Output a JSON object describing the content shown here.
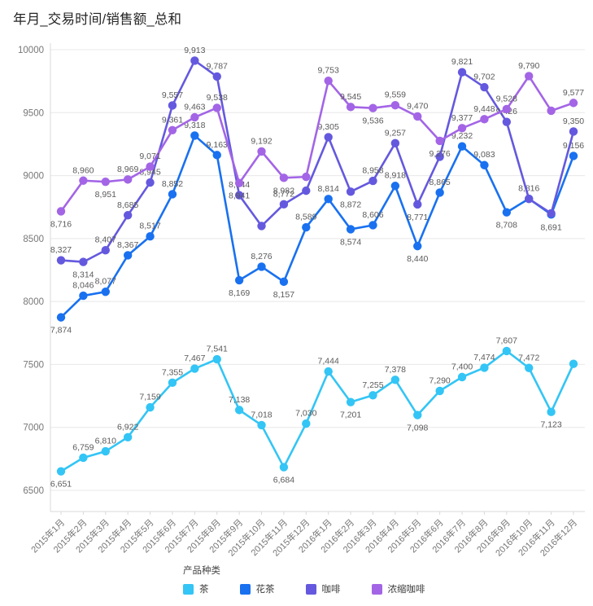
{
  "title": "年月_交易时间/销售额_总和",
  "legend": {
    "title": "产品种类",
    "items": [
      {
        "label": "茶",
        "color": "#33C5F5"
      },
      {
        "label": "花茶",
        "color": "#1971F0"
      },
      {
        "label": "咖啡",
        "color": "#6459DE"
      },
      {
        "label": "浓缩咖啡",
        "color": "#A365E6"
      }
    ]
  },
  "chart_data": {
    "type": "line",
    "title": "年月_交易时间/销售额_总和",
    "xlabel": "",
    "ylabel": "",
    "ylim": [
      6500,
      10000
    ],
    "ytick_step": 500,
    "ytick_labels": [
      "10000",
      "9500",
      "9000",
      "8500",
      "8000",
      "7500",
      "7000",
      "6500"
    ],
    "grid": true,
    "legend_position": "bottom",
    "x": [
      "2015年1月",
      "2015年2月",
      "2015年3月",
      "2015年4月",
      "2015年5月",
      "2015年6月",
      "2015年7月",
      "2015年8月",
      "2015年9月",
      "2015年10月",
      "2015年11月",
      "2015年12月",
      "2016年1月",
      "2016年2月",
      "2016年3月",
      "2016年4月",
      "2016年5月",
      "2016年6月",
      "2016年7月",
      "2016年8月",
      "2016年9月",
      "2016年10月",
      "2016年11月",
      "2016年12月"
    ],
    "series": [
      {
        "name": "茶",
        "color": "#33C5F5",
        "values": [
          6651,
          6759,
          6810,
          6922,
          7159,
          7355,
          7467,
          7541,
          7138,
          7018,
          6684,
          7030,
          7444,
          7201,
          7255,
          7378,
          7098,
          7290,
          7400,
          7474,
          7607,
          7472,
          7123,
          7505
        ],
        "labels": [
          "6,651",
          "6,759",
          "6,810",
          "6,922",
          "7,159",
          "7,355",
          "7,467",
          "7,541",
          "7,138",
          "7,018",
          "6,684",
          "7,030",
          "7,444",
          "7,201",
          "7,255",
          "7,378",
          "7,098",
          "7,290",
          "7,400",
          "7,474",
          "7,607",
          "7,472",
          "7,123",
          ""
        ]
      },
      {
        "name": "花茶",
        "color": "#1971F0",
        "values": [
          7874,
          8046,
          8077,
          8367,
          8517,
          8852,
          9318,
          9163,
          8169,
          8276,
          8157,
          8589,
          8814,
          8574,
          8606,
          8918,
          8440,
          8865,
          9232,
          9083,
          8708,
          8816,
          8691,
          9156
        ],
        "labels": [
          "7,874",
          "8,046",
          "8,077",
          "8,367",
          "8,517",
          "8,852",
          "9,318",
          "9,163",
          "8,169",
          "8,276",
          "8,157",
          "8,589",
          "8,814",
          "8,574",
          "8,606",
          "8,918",
          "8,440",
          "8,865",
          "9,232",
          "9,083",
          "8,708",
          "8,816",
          "8,691",
          "9,156"
        ]
      },
      {
        "name": "咖啡",
        "color": "#6459DE",
        "values": [
          8327,
          8314,
          8407,
          8685,
          8945,
          9557,
          9913,
          9787,
          8844,
          8600,
          8772,
          8880,
          9305,
          8872,
          8958,
          9257,
          8771,
          9150,
          9821,
          9702,
          9426,
          8815,
          8700,
          9350
        ],
        "labels": [
          "8,327",
          "8,314",
          "8,407",
          "8,685",
          "8,945",
          "9,557",
          "9,913",
          "9,787",
          "8,844",
          "",
          "8,772",
          "",
          "9,305",
          "8,872",
          "8,958",
          "9,257",
          "8,771",
          "",
          "9,821",
          "9,702",
          "9,426",
          "",
          "",
          "9,350"
        ]
      },
      {
        "name": "浓缩咖啡",
        "color": "#A365E6",
        "values": [
          8716,
          8960,
          8951,
          8969,
          9071,
          9361,
          9463,
          9538,
          8941,
          9192,
          8982,
          8990,
          9753,
          9545,
          9536,
          9559,
          9470,
          9276,
          9377,
          9448,
          9528,
          9790,
          9515,
          9577
        ],
        "labels": [
          "8,716",
          "8,960",
          "8,951",
          "8,969",
          "9,071",
          "9,361",
          "9,463",
          "9,538",
          "8,941",
          "9,192",
          "8,982",
          "",
          "9,753",
          "9,545",
          "9,536",
          "9,559",
          "9,470",
          "9,276",
          "9,377",
          "9,448",
          "9,528",
          "9,790",
          "",
          "9,577"
        ]
      }
    ]
  }
}
